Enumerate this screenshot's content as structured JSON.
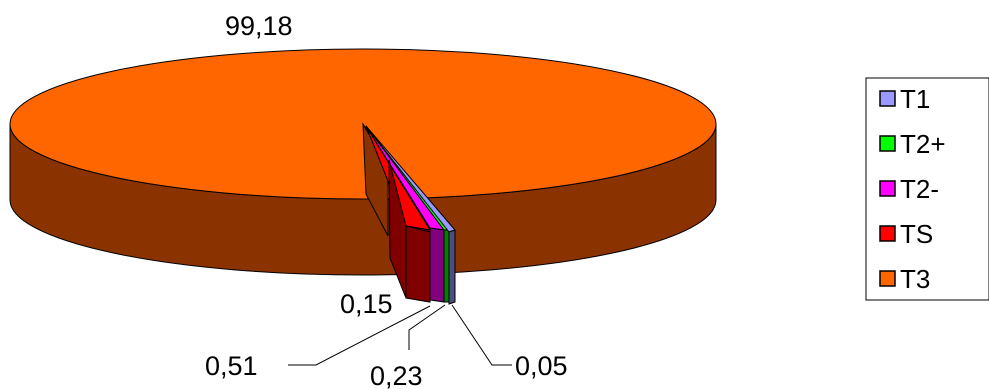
{
  "chart_data": {
    "type": "pie",
    "style": "3d-exploded-slices",
    "series": [
      {
        "name": "T1",
        "value": 0.05,
        "label": "0,05",
        "top_color": "#9999ff",
        "side_color": "#4d4d80"
      },
      {
        "name": "T2+",
        "value": 0.23,
        "label": "0,23",
        "top_color": "#00ff00",
        "side_color": "#008000"
      },
      {
        "name": "T2-",
        "value": 0.15,
        "label": "0,15",
        "top_color": "#ff00ff",
        "side_color": "#800080"
      },
      {
        "name": "TS",
        "value": 0.51,
        "label": "0,51",
        "top_color": "#ff0000",
        "side_color": "#800000"
      },
      {
        "name": "T3",
        "value": 99.18,
        "label": "99,18",
        "top_color": "#ff6600",
        "side_color": "#8b3300"
      }
    ],
    "legend_position": "right",
    "legend_border": "#000000"
  }
}
